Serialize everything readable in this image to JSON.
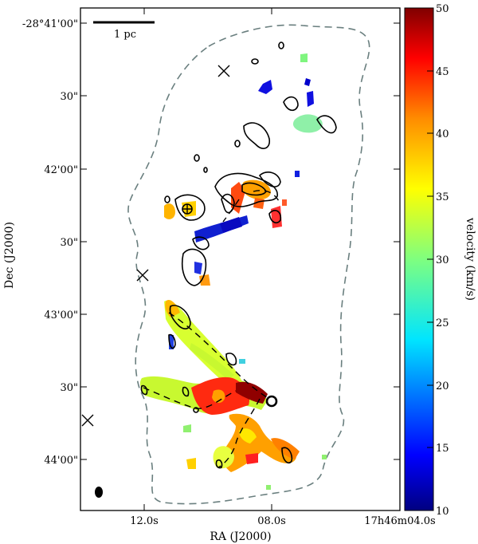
{
  "chart_data": {
    "type": "heatmap",
    "title": "",
    "xlabel": "RA (J2000)",
    "ylabel": "Dec (J2000)",
    "x_ticks": [
      "12.0s",
      "08.0s",
      "17h46m04.0s"
    ],
    "y_ticks": [
      "-28°41'00\"",
      "30\"",
      "42'00\"",
      "30\"",
      "43'00\"",
      "30\"",
      "44'00\""
    ],
    "scale_bar_label": "1 pc",
    "colorbar": {
      "label": "velocity (km/s)",
      "min": 10,
      "max": 50,
      "ticks": [
        "10",
        "15",
        "20",
        "25",
        "30",
        "35",
        "40",
        "45",
        "50"
      ],
      "colormap": [
        "#000080",
        "#0000ff",
        "#00ffff",
        "#7fff7f",
        "#ffff00",
        "#ff7f00",
        "#ff0000",
        "#800000"
      ]
    },
    "grid": false,
    "legend": "none",
    "markers": [
      "x-cross",
      "x-cross",
      "x-cross",
      "circle",
      "plus-circle"
    ],
    "outline_color": "#6a7f7f"
  }
}
